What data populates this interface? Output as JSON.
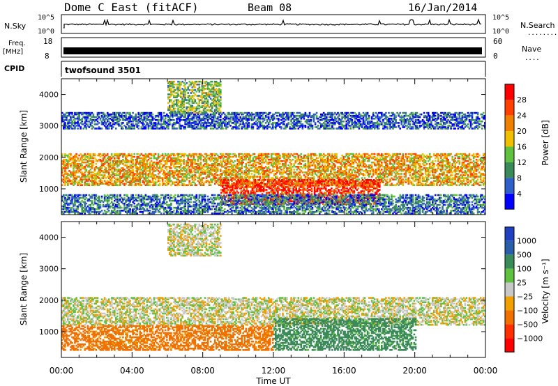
{
  "header": {
    "station": "Dome C East (fitACF)",
    "beam": "Beam 08",
    "date": "16/Jan/2014"
  },
  "strips": {
    "nsky_label": "N.Sky",
    "nsky_tick_top": "10^5",
    "nsky_tick_bottom": "10^0",
    "nsearch_label": "N.Search",
    "nsearch_dots": "........",
    "freq_label": "Freq.",
    "freq_unit": "[MHz]",
    "freq_tick_top": "18",
    "freq_tick_bottom": "8",
    "nave_tick_top": "60",
    "nave_tick_bottom": "0",
    "nave_label": "Nave",
    "nave_dots": "....",
    "cpid_label": "CPID",
    "cpid_value": "twofsound 3501"
  },
  "chart_data": [
    {
      "type": "heatmap",
      "name": "power",
      "ylabel": "Slant Range [km]",
      "xlabel": "",
      "x_tick_labels": [
        "00:00",
        "04:00",
        "08:00",
        "12:00",
        "16:00",
        "20:00",
        "00:00"
      ],
      "xlim_hours": [
        0,
        24
      ],
      "ylim_km": [
        180,
        4500
      ],
      "y_tick_labels": [
        "1000",
        "2000",
        "3000",
        "4000"
      ],
      "y_ticks_km": [
        1000,
        2000,
        3000,
        4000
      ],
      "colorbar": {
        "label": "Power [dB]",
        "tick_labels": [
          "4",
          "8",
          "12",
          "16",
          "20",
          "24",
          "28"
        ],
        "range": [
          0,
          32
        ],
        "colors": [
          "#0000ff",
          "#2f5fc8",
          "#3a8a5a",
          "#60c040",
          "#f0c000",
          "#f08000",
          "#ff4000",
          "#ff0000"
        ]
      },
      "bands": [
        {
          "t0": 0,
          "t1": 24,
          "r0": 1100,
          "r1": 2100,
          "power": 20
        },
        {
          "t0": 9,
          "t1": 18,
          "r0": 500,
          "r1": 1300,
          "power": 28
        },
        {
          "t0": 0,
          "t1": 24,
          "r0": 200,
          "r1": 800,
          "power": 8
        },
        {
          "t0": 0,
          "t1": 24,
          "r0": 2900,
          "r1": 3400,
          "power": 6
        },
        {
          "t0": 6,
          "t1": 9,
          "r0": 3400,
          "r1": 4400,
          "power": 14
        }
      ]
    },
    {
      "type": "heatmap",
      "name": "velocity",
      "ylabel": "Slant Range [km]",
      "xlabel": "Time UT",
      "x_tick_labels": [
        "00:00",
        "04:00",
        "08:00",
        "12:00",
        "16:00",
        "20:00",
        "00:00"
      ],
      "xlim_hours": [
        0,
        24
      ],
      "ylim_km": [
        180,
        4500
      ],
      "y_tick_labels": [
        "1000",
        "2000",
        "3000",
        "4000"
      ],
      "y_ticks_km": [
        1000,
        2000,
        3000,
        4000
      ],
      "colorbar": {
        "label": "Velocity [m s⁻¹]",
        "tick_labels": [
          "1000",
          "500",
          "100",
          "25",
          "−25",
          "−100",
          "−500",
          "−1000"
        ],
        "colors": [
          "#2040c0",
          "#2a5ea8",
          "#3a8a5a",
          "#60c040",
          "#c8c8c8",
          "#f0a000",
          "#f07000",
          "#ff3000",
          "#ff0000"
        ]
      },
      "bands": [
        {
          "t0": 0,
          "t1": 24,
          "r0": 1200,
          "r1": 2100,
          "velocity": 0
        },
        {
          "t0": 0,
          "t1": 12,
          "r0": 400,
          "r1": 1200,
          "velocity": -150
        },
        {
          "t0": 12,
          "t1": 20,
          "r0": 400,
          "r1": 1400,
          "velocity": 150
        },
        {
          "t0": 6,
          "t1": 9,
          "r0": 3400,
          "r1": 4400,
          "velocity": 0
        }
      ]
    }
  ]
}
